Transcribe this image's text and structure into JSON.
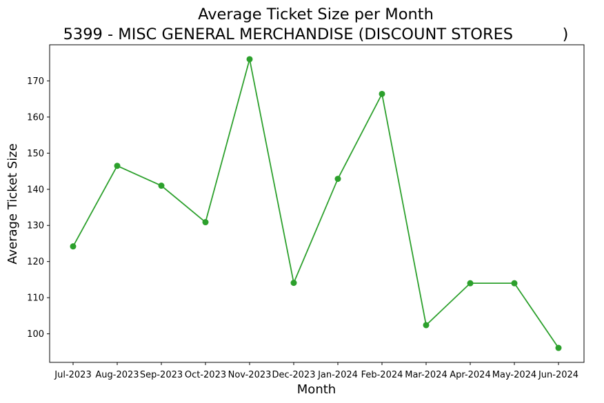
{
  "chart_data": {
    "type": "line",
    "title": "Average Ticket Size per Month",
    "subtitle": "5399 - MISC GENERAL MERCHANDISE (DISCOUNT STORES          )",
    "xlabel": "Month",
    "ylabel": "Average Ticket Size",
    "categories": [
      "Jul-2023",
      "Aug-2023",
      "Sep-2023",
      "Oct-2023",
      "Nov-2023",
      "Dec-2023",
      "Jan-2024",
      "Feb-2024",
      "Mar-2024",
      "Apr-2024",
      "May-2024",
      "Jun-2024"
    ],
    "series": [
      {
        "color": "#2ca02c",
        "marker": "circle",
        "values": [
          124.2,
          146.5,
          141.0,
          130.9,
          176.0,
          114.1,
          142.9,
          166.4,
          102.4,
          114.0,
          114.0,
          96.1
        ]
      }
    ],
    "yticks": [
      100,
      110,
      120,
      130,
      140,
      150,
      160,
      170
    ],
    "ylim": [
      92.1,
      180.0
    ],
    "grid": false,
    "legend": "none"
  }
}
